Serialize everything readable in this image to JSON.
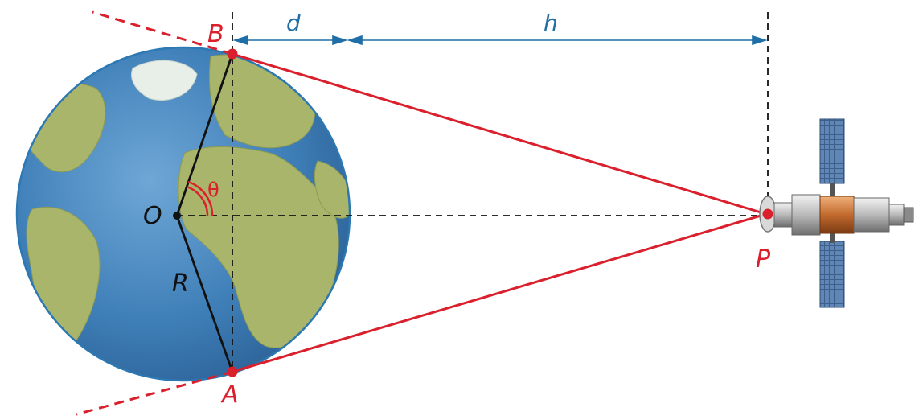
{
  "labels": {
    "B": "B",
    "A": "A",
    "O": "O",
    "R": "R",
    "P": "P",
    "d": "d",
    "h": "h",
    "theta": "θ"
  },
  "colors": {
    "tangent_line": "#d9202c",
    "dimension": "#1f6fa6",
    "radius": "#111111",
    "ocean": "#3f7fb8",
    "land": "#a9b56a",
    "globe_outline": "#2c78b2"
  },
  "icons": {
    "earth": "earth-globe-icon",
    "satellite": "satellite-icon"
  }
}
